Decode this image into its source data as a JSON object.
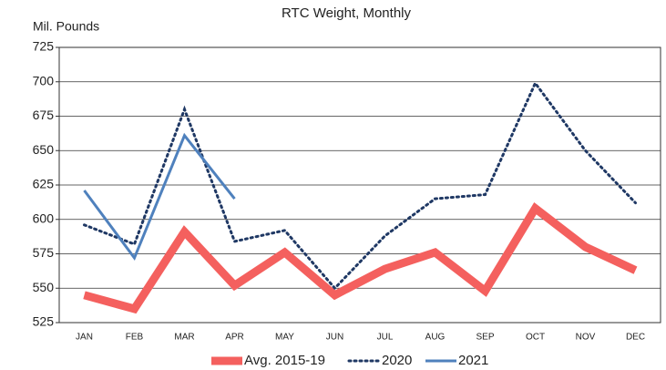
{
  "chart_data": {
    "type": "line",
    "title": "RTC Weight, Monthly",
    "ylabel": "Mil. Pounds",
    "categories": [
      "JAN",
      "FEB",
      "MAR",
      "APR",
      "MAY",
      "JUN",
      "JUL",
      "AUG",
      "SEP",
      "OCT",
      "NOV",
      "DEC"
    ],
    "series": [
      {
        "name": "Avg. 2015-19",
        "color": "#f4605e",
        "style": "solid",
        "width": 9,
        "values": [
          545,
          535,
          591,
          552,
          576,
          545,
          564,
          576,
          548,
          608,
          580,
          563
        ]
      },
      {
        "name": "2020",
        "color": "#1f3864",
        "style": "dotted",
        "width": 3,
        "values": [
          596,
          582,
          680,
          584,
          592,
          550,
          588,
          615,
          618,
          699,
          650,
          612
        ]
      },
      {
        "name": "2021",
        "color": "#4f81bd",
        "style": "solid",
        "width": 3,
        "values": [
          621,
          572,
          661,
          615,
          null,
          null,
          null,
          null,
          null,
          null,
          null,
          null
        ]
      }
    ],
    "ylim": [
      525,
      725
    ],
    "yticks": [
      525,
      550,
      575,
      600,
      625,
      650,
      675,
      700,
      725
    ],
    "grid": true,
    "legend": "bottom"
  }
}
